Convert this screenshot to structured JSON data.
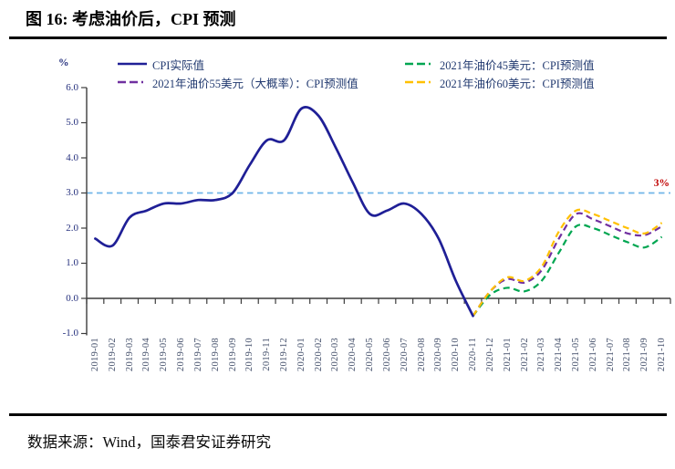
{
  "header": {
    "title": "图 16: 考虑油价后，CPI 预测"
  },
  "footer": {
    "source": "数据来源：Wind，国泰君安证券研究"
  },
  "chart_data": {
    "type": "line",
    "unit_label": "%",
    "grid": false,
    "legend_position": "top",
    "ylim": [
      -1.0,
      6.0
    ],
    "yticks": [
      "6.0",
      "5.0",
      "4.0",
      "3.0",
      "2.0",
      "1.0",
      "0.0",
      "-1.0"
    ],
    "threshold": {
      "value": 3.0,
      "label": "3%",
      "line_color": "#70b5e8",
      "label_color": "#c00000"
    },
    "x": [
      "2019-01",
      "2019-02",
      "2019-03",
      "2019-04",
      "2019-05",
      "2019-06",
      "2019-07",
      "2019-08",
      "2019-09",
      "2019-10",
      "2019-11",
      "2019-12",
      "2020-01",
      "2020-02",
      "2020-03",
      "2020-04",
      "2020-05",
      "2020-06",
      "2020-07",
      "2020-08",
      "2020-09",
      "2020-10",
      "2020-11",
      "2020-12",
      "2021-01",
      "2021-02",
      "2021-03",
      "2021-04",
      "2021-05",
      "2021-06",
      "2021-07",
      "2021-08",
      "2021-09",
      "2021-10"
    ],
    "series": [
      {
        "name": "CPI实际值",
        "color": "#1f1f96",
        "style": "solid",
        "start_index": 0,
        "values": [
          1.7,
          1.5,
          2.3,
          2.5,
          2.7,
          2.7,
          2.8,
          2.8,
          3.0,
          3.8,
          4.5,
          4.5,
          5.4,
          5.2,
          4.3,
          3.3,
          2.4,
          2.5,
          2.7,
          2.4,
          1.7,
          0.5,
          -0.5
        ]
      },
      {
        "name": "2021年油价45美元：CPI预测值",
        "color": "#00a651",
        "style": "dashed",
        "start_index": 22,
        "values": [
          -0.5,
          0.1,
          0.3,
          0.2,
          0.5,
          1.3,
          2.05,
          2.0,
          1.8,
          1.6,
          1.45,
          1.75
        ]
      },
      {
        "name": "2021年油价55美元（大概率）：CPI预测值",
        "color": "#7030a0",
        "style": "dashed",
        "start_index": 22,
        "values": [
          -0.5,
          0.2,
          0.55,
          0.45,
          0.8,
          1.7,
          2.4,
          2.25,
          2.05,
          1.85,
          1.8,
          2.05
        ]
      },
      {
        "name": "2021年油价60美元：CPI预测值",
        "color": "#ffc000",
        "style": "dashed",
        "start_index": 22,
        "values": [
          -0.5,
          0.2,
          0.6,
          0.5,
          0.9,
          1.9,
          2.5,
          2.4,
          2.2,
          2.0,
          1.85,
          2.15
        ]
      }
    ]
  }
}
